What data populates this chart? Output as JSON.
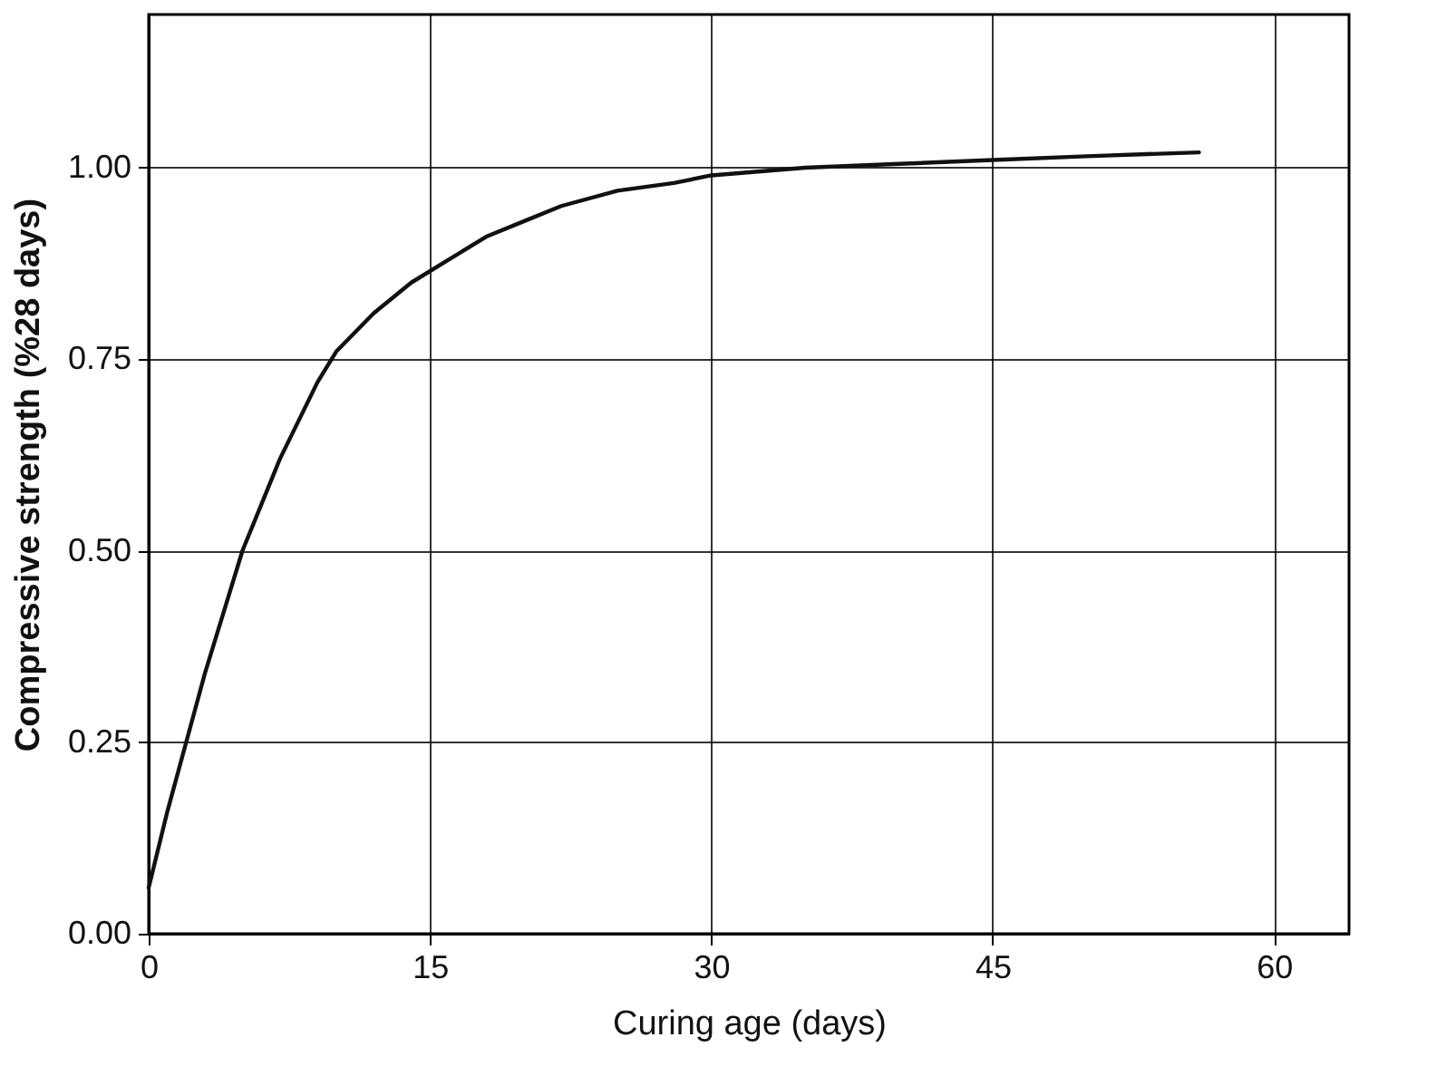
{
  "chart_data": {
    "type": "line",
    "xlabel": "Curing age (days)",
    "ylabel": "Compressive strength (%28 days)",
    "series": [
      {
        "color": "#111111",
        "x": [
          0,
          1,
          2,
          3,
          4,
          5,
          6,
          7,
          8,
          9,
          10,
          12,
          14,
          16,
          18,
          20,
          22,
          25,
          28,
          30,
          35,
          40,
          45,
          50,
          56
        ],
        "values": [
          0.06,
          0.16,
          0.25,
          0.34,
          0.42,
          0.5,
          0.56,
          0.62,
          0.67,
          0.72,
          0.76,
          0.81,
          0.85,
          0.88,
          0.91,
          0.93,
          0.95,
          0.97,
          0.98,
          0.99,
          1.0,
          1.005,
          1.01,
          1.015,
          1.02
        ]
      }
    ],
    "xlim": [
      0,
      64
    ],
    "xticks": [
      0,
      15,
      30,
      45,
      60
    ],
    "ylim": [
      0,
      1.2
    ],
    "yticks": [
      {
        "value": 0,
        "label": "0.00"
      },
      {
        "value": 0.25,
        "label": "0.25"
      },
      {
        "value": 0.5,
        "label": "0.50"
      },
      {
        "value": 0.75,
        "label": "0.75"
      },
      {
        "value": 1,
        "label": "1.00"
      }
    ],
    "grid": true,
    "marker": "none",
    "line_style": "solid"
  }
}
